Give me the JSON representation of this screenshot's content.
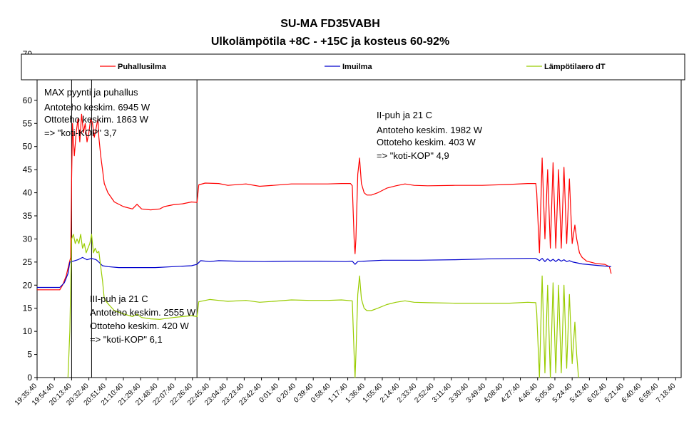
{
  "chart_data": {
    "type": "line",
    "title": "SU-MA FD35VABH",
    "subtitle": "Ulkolämpötila  +8C - +15C ja kosteus 60-92%",
    "ylim": [
      0,
      70
    ],
    "yticks": [
      0,
      5,
      10,
      15,
      20,
      25,
      30,
      35,
      40,
      45,
      50,
      55,
      60,
      65,
      70
    ],
    "grid": false,
    "legend_position": "top",
    "x_tick_labels": [
      "19:35:40",
      "19:54:40",
      "20:13:40",
      "20:32:40",
      "20:51:40",
      "21:10:40",
      "21:29:40",
      "21:48:40",
      "22:07:40",
      "22:26:40",
      "22:45:40",
      "23:04:40",
      "23:23:40",
      "23:42:40",
      "0:01:40",
      "0:20:40",
      "0:39:40",
      "0:58:40",
      "1:17:40",
      "1:36:40",
      "1:55:40",
      "2:14:40",
      "2:33:40",
      "2:52:40",
      "3:11:40",
      "3:30:40",
      "3:49:40",
      "4:08:40",
      "4:27:40",
      "4:46:40",
      "5:05:40",
      "5:24:40",
      "5:43:40",
      "6:02:40",
      "6:21:40",
      "6:40:40",
      "6:59:40",
      "7:18:40"
    ],
    "x_range_minutes": [
      0,
      709
    ],
    "series": [
      {
        "name": "Puhallusilma",
        "color": "#ff0000",
        "points": [
          [
            0,
            19
          ],
          [
            25,
            19
          ],
          [
            28,
            20
          ],
          [
            32,
            22
          ],
          [
            35,
            24.5
          ],
          [
            37,
            26
          ],
          [
            38,
            43
          ],
          [
            39,
            55
          ],
          [
            41,
            48
          ],
          [
            43,
            53
          ],
          [
            45,
            56
          ],
          [
            47,
            51
          ],
          [
            49,
            57
          ],
          [
            51,
            53
          ],
          [
            53,
            55
          ],
          [
            55,
            51
          ],
          [
            57,
            53
          ],
          [
            59,
            56
          ],
          [
            61,
            55
          ],
          [
            63,
            52
          ],
          [
            65,
            54
          ],
          [
            67,
            56
          ],
          [
            68,
            52
          ],
          [
            70,
            48
          ],
          [
            72,
            45
          ],
          [
            74,
            42
          ],
          [
            78,
            40
          ],
          [
            85,
            38
          ],
          [
            95,
            37
          ],
          [
            105,
            36.5
          ],
          [
            110,
            37.5
          ],
          [
            115,
            36.5
          ],
          [
            125,
            36.3
          ],
          [
            135,
            36.5
          ],
          [
            140,
            37
          ],
          [
            150,
            37.4
          ],
          [
            160,
            37.6
          ],
          [
            170,
            38
          ],
          [
            176,
            37.9
          ],
          [
            178,
            41.7
          ],
          [
            185,
            42.1
          ],
          [
            200,
            42
          ],
          [
            210,
            41.6
          ],
          [
            230,
            41.9
          ],
          [
            245,
            41.4
          ],
          [
            260,
            41.6
          ],
          [
            280,
            41.9
          ],
          [
            300,
            41.9
          ],
          [
            320,
            41.9
          ],
          [
            335,
            42
          ],
          [
            345,
            42
          ],
          [
            347,
            41.5
          ],
          [
            349,
            30
          ],
          [
            350,
            26.8
          ],
          [
            351,
            30
          ],
          [
            353,
            44
          ],
          [
            355,
            47.5
          ],
          [
            357,
            42
          ],
          [
            360,
            40
          ],
          [
            363,
            39.5
          ],
          [
            368,
            39.5
          ],
          [
            375,
            40
          ],
          [
            385,
            41
          ],
          [
            395,
            41.5
          ],
          [
            405,
            41.9
          ],
          [
            415,
            41.6
          ],
          [
            430,
            41.5
          ],
          [
            460,
            41.6
          ],
          [
            490,
            41.6
          ],
          [
            520,
            41.8
          ],
          [
            540,
            42
          ],
          [
            549,
            42
          ],
          [
            550,
            40
          ],
          [
            553,
            27
          ],
          [
            556,
            47.5
          ],
          [
            559,
            30
          ],
          [
            562,
            45
          ],
          [
            565,
            28
          ],
          [
            568,
            46.5
          ],
          [
            571,
            28
          ],
          [
            574,
            45
          ],
          [
            577,
            28
          ],
          [
            580,
            45.5
          ],
          [
            583,
            29
          ],
          [
            586,
            43
          ],
          [
            589,
            29
          ],
          [
            592,
            33
          ],
          [
            594,
            30
          ],
          [
            597,
            27
          ],
          [
            600,
            26
          ],
          [
            605,
            25.2
          ],
          [
            615,
            24.7
          ],
          [
            625,
            24.5
          ],
          [
            630,
            24
          ],
          [
            632,
            22.5
          ]
        ]
      },
      {
        "name": "Imuilma",
        "color": "#0000cc",
        "points": [
          [
            0,
            19.5
          ],
          [
            25,
            19.5
          ],
          [
            30,
            20.5
          ],
          [
            34,
            22.5
          ],
          [
            36,
            25
          ],
          [
            40,
            25.2
          ],
          [
            45,
            25.5
          ],
          [
            50,
            26
          ],
          [
            55,
            25.5
          ],
          [
            60,
            25.8
          ],
          [
            65,
            25.5
          ],
          [
            68,
            25
          ],
          [
            72,
            24.2
          ],
          [
            78,
            24
          ],
          [
            90,
            23.8
          ],
          [
            110,
            23.8
          ],
          [
            130,
            23.8
          ],
          [
            150,
            24
          ],
          [
            170,
            24.2
          ],
          [
            176,
            24.5
          ],
          [
            180,
            25.3
          ],
          [
            190,
            25.1
          ],
          [
            200,
            25.3
          ],
          [
            220,
            25.2
          ],
          [
            250,
            25.1
          ],
          [
            280,
            25.2
          ],
          [
            310,
            25.2
          ],
          [
            340,
            25.1
          ],
          [
            347,
            25.2
          ],
          [
            350,
            24.5
          ],
          [
            353,
            25.1
          ],
          [
            360,
            25.2
          ],
          [
            380,
            25.4
          ],
          [
            420,
            25.4
          ],
          [
            460,
            25.5
          ],
          [
            500,
            25.7
          ],
          [
            540,
            25.8
          ],
          [
            549,
            25.8
          ],
          [
            553,
            25.3
          ],
          [
            556,
            25.8
          ],
          [
            559,
            25.1
          ],
          [
            562,
            25.7
          ],
          [
            565,
            25.2
          ],
          [
            568,
            25.6
          ],
          [
            571,
            25.1
          ],
          [
            574,
            25.6
          ],
          [
            577,
            25.2
          ],
          [
            580,
            25.5
          ],
          [
            583,
            25.1
          ],
          [
            586,
            25.3
          ],
          [
            590,
            25
          ],
          [
            600,
            24.6
          ],
          [
            615,
            24.3
          ],
          [
            632,
            24
          ]
        ]
      },
      {
        "name": "Lämpötilaero dT",
        "color": "#99cc00",
        "points": [
          [
            34,
            0
          ],
          [
            35,
            5
          ],
          [
            36,
            10
          ],
          [
            38,
            30
          ],
          [
            40,
            31
          ],
          [
            42,
            29
          ],
          [
            44,
            30
          ],
          [
            46,
            29
          ],
          [
            48,
            31
          ],
          [
            50,
            28
          ],
          [
            52,
            29
          ],
          [
            54,
            27
          ],
          [
            56,
            28
          ],
          [
            58,
            29
          ],
          [
            60,
            31
          ],
          [
            62,
            27
          ],
          [
            64,
            28
          ],
          [
            66,
            27
          ],
          [
            68,
            27.3
          ],
          [
            70,
            24
          ],
          [
            72,
            21
          ],
          [
            74,
            17
          ],
          [
            78,
            16
          ],
          [
            85,
            14.5
          ],
          [
            95,
            13.8
          ],
          [
            105,
            13.2
          ],
          [
            110,
            13.7
          ],
          [
            115,
            13
          ],
          [
            125,
            12.7
          ],
          [
            135,
            12.6
          ],
          [
            150,
            13
          ],
          [
            160,
            13.2
          ],
          [
            170,
            13.4
          ],
          [
            176,
            13.2
          ],
          [
            178,
            16.4
          ],
          [
            190,
            16.9
          ],
          [
            200,
            16.7
          ],
          [
            210,
            16.5
          ],
          [
            230,
            16.7
          ],
          [
            245,
            16.3
          ],
          [
            260,
            16.5
          ],
          [
            280,
            16.8
          ],
          [
            300,
            16.7
          ],
          [
            320,
            16.7
          ],
          [
            335,
            16.8
          ],
          [
            347,
            16.6
          ],
          [
            349,
            5
          ],
          [
            350,
            0
          ],
          [
            351,
            5
          ],
          [
            353,
            18
          ],
          [
            355,
            22
          ],
          [
            357,
            17
          ],
          [
            360,
            15
          ],
          [
            363,
            14.5
          ],
          [
            368,
            14.5
          ],
          [
            375,
            15
          ],
          [
            385,
            15.8
          ],
          [
            395,
            16.3
          ],
          [
            405,
            16.6
          ],
          [
            415,
            16.3
          ],
          [
            430,
            16.2
          ],
          [
            460,
            16.1
          ],
          [
            490,
            16.1
          ],
          [
            520,
            16.1
          ],
          [
            540,
            16.3
          ],
          [
            549,
            16.2
          ],
          [
            550,
            14
          ],
          [
            553,
            0
          ],
          [
            556,
            22
          ],
          [
            559,
            1
          ],
          [
            562,
            20
          ],
          [
            565,
            0
          ],
          [
            568,
            20.5
          ],
          [
            571,
            1
          ],
          [
            574,
            20
          ],
          [
            577,
            1
          ],
          [
            580,
            20
          ],
          [
            583,
            2
          ],
          [
            586,
            18
          ],
          [
            589,
            3
          ],
          [
            592,
            12
          ],
          [
            594,
            5
          ],
          [
            596,
            0
          ]
        ]
      }
    ],
    "vertical_markers": [
      38,
      60,
      176
    ],
    "annotations": [
      {
        "lines": [
          "MAX pyynti ja puhallus",
          "Antoteho keskim. 6945 W",
          "Ottoteho keskim. 1863 W",
          "=> \"koti-KOP\"  3,7"
        ]
      },
      {
        "lines": [
          "II-puh ja 21 C",
          "Antoteho keskim. 1982 W",
          "Ottoteho keskim. 403 W",
          "=> \"koti-KOP\"  4,9"
        ]
      },
      {
        "lines": [
          "III-puh ja 21 C",
          "Antoteho keskim. 2555 W",
          "Ottoteho keskim. 420 W",
          "=> \"koti-KOP\"  6,1"
        ]
      }
    ]
  }
}
